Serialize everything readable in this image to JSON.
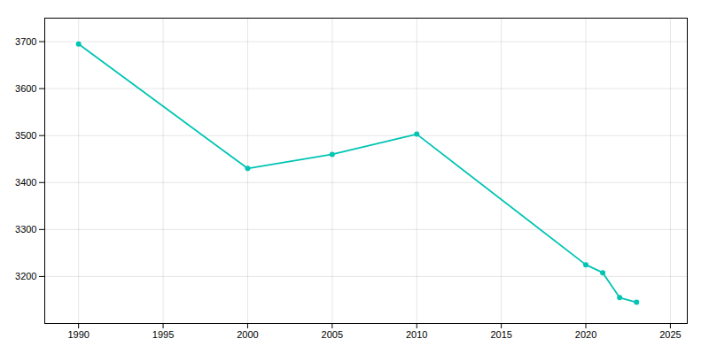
{
  "chart_data": {
    "type": "line",
    "x": [
      1990,
      2000,
      2005,
      2010,
      2020,
      2021,
      2022,
      2023
    ],
    "values": [
      3695,
      3430,
      3460,
      3503,
      3225,
      3208,
      3155,
      3145
    ],
    "color": "#00c4b4",
    "marker": "circle",
    "xlim": [
      1988,
      2026
    ],
    "ylim": [
      3100,
      3750
    ],
    "xticks": [
      1990,
      1995,
      2000,
      2005,
      2010,
      2015,
      2020,
      2025
    ],
    "yticks": [
      3200,
      3300,
      3400,
      3500,
      3600,
      3700
    ],
    "grid": true
  }
}
